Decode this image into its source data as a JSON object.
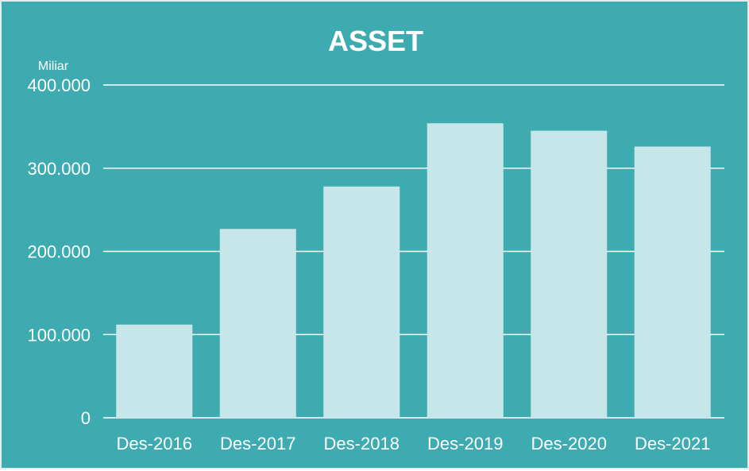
{
  "chart_data": {
    "type": "bar",
    "title": "ASSET",
    "unit_label": "Miliar",
    "categories": [
      "Des-2016",
      "Des-2017",
      "Des-2018",
      "Des-2019",
      "Des-2020",
      "Des-2021"
    ],
    "values": [
      112000,
      227000,
      278000,
      354000,
      345000,
      326000
    ],
    "ylim": [
      0,
      400000
    ],
    "yticks": [
      0,
      100000,
      200000,
      300000,
      400000
    ],
    "ytick_labels": [
      "0",
      "100.000",
      "200.000",
      "300.000",
      "400.000"
    ],
    "grid": true,
    "legend": "none",
    "colors": {
      "background": "#3eabb1",
      "bar": "#c7e6ea",
      "text": "#ffffff",
      "gridline": "#ffffff"
    }
  }
}
